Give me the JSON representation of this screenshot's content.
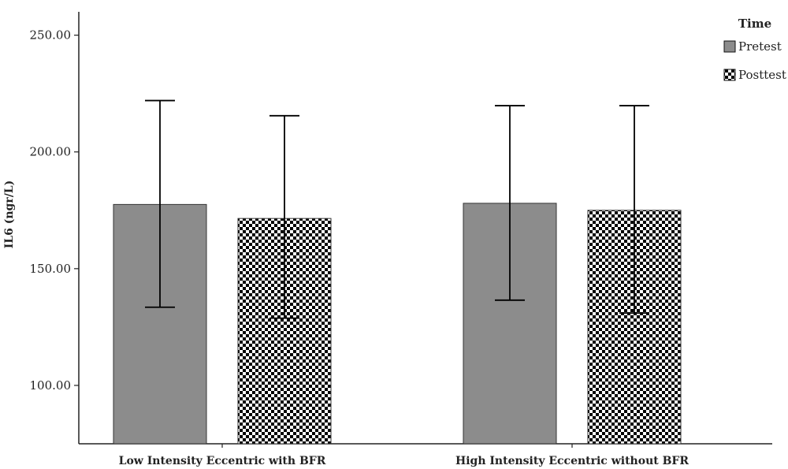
{
  "chart_data": {
    "type": "bar",
    "ylabel": "IL6 (ngr/L)",
    "ylim": [
      75,
      260
    ],
    "yticks": [
      100,
      150,
      200,
      250
    ],
    "ytick_labels": [
      "100.00",
      "150.00",
      "200.00",
      "250.00"
    ],
    "categories": [
      "Low Intensity Eccentric with BFR",
      "High Intensity Eccentric without BFR"
    ],
    "series": [
      {
        "name": "Pretest",
        "values": [
          177.5,
          178.0
        ],
        "err_low": [
          133.5,
          136.5
        ],
        "err_high": [
          222.0,
          219.8
        ],
        "color": "#8c8c8c",
        "pattern": "solid"
      },
      {
        "name": "Posttest",
        "values": [
          171.5,
          175.0
        ],
        "err_low": [
          128.8,
          131.0
        ],
        "err_high": [
          215.5,
          219.8
        ],
        "color": "#000000",
        "pattern": "checker"
      }
    ],
    "legend": {
      "title": "Time",
      "position": "top-right"
    },
    "grid": false
  }
}
